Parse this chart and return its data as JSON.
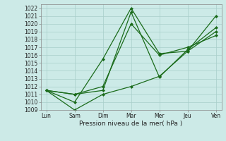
{
  "x_labels": [
    "Lun",
    "Sam",
    "Dim",
    "Mar",
    "Mer",
    "Jeu",
    "Ven"
  ],
  "x_positions": [
    0,
    1,
    2,
    3,
    4,
    5,
    6
  ],
  "lines": [
    {
      "x": [
        0,
        1,
        2,
        3,
        4,
        5,
        6
      ],
      "y": [
        1011.5,
        1010.0,
        1015.5,
        1022.0,
        1016.2,
        1016.5,
        1021.0
      ],
      "color": "#1a6b1a",
      "marker": "D",
      "markersize": 2.0,
      "linewidth": 0.9
    },
    {
      "x": [
        0,
        1,
        2,
        3,
        4,
        5,
        6
      ],
      "y": [
        1011.5,
        1011.0,
        1011.5,
        1021.5,
        1013.2,
        1016.7,
        1019.5
      ],
      "color": "#1a6b1a",
      "marker": "D",
      "markersize": 2.0,
      "linewidth": 0.9
    },
    {
      "x": [
        0,
        1,
        2,
        3,
        4,
        5,
        6
      ],
      "y": [
        1011.5,
        1009.0,
        1011.0,
        1012.0,
        1013.3,
        1016.5,
        1019.0
      ],
      "color": "#1a6b1a",
      "marker": "D",
      "markersize": 2.0,
      "linewidth": 0.9
    },
    {
      "x": [
        0,
        1,
        2,
        3,
        4,
        5,
        6
      ],
      "y": [
        1011.5,
        1011.0,
        1012.0,
        1020.0,
        1016.0,
        1017.0,
        1018.5
      ],
      "color": "#1a6b1a",
      "marker": "D",
      "markersize": 2.0,
      "linewidth": 0.9
    }
  ],
  "xlabel": "Pression niveau de la mer( hPa )",
  "ylim": [
    1009,
    1022.5
  ],
  "yticks": [
    1009,
    1010,
    1011,
    1012,
    1013,
    1014,
    1015,
    1016,
    1017,
    1018,
    1019,
    1020,
    1021,
    1022
  ],
  "bg_color": "#cceae7",
  "grid_color": "#a8ceca",
  "line_color": "#1a6b1a",
  "tick_fontsize": 5.5,
  "xlabel_fontsize": 6.5
}
